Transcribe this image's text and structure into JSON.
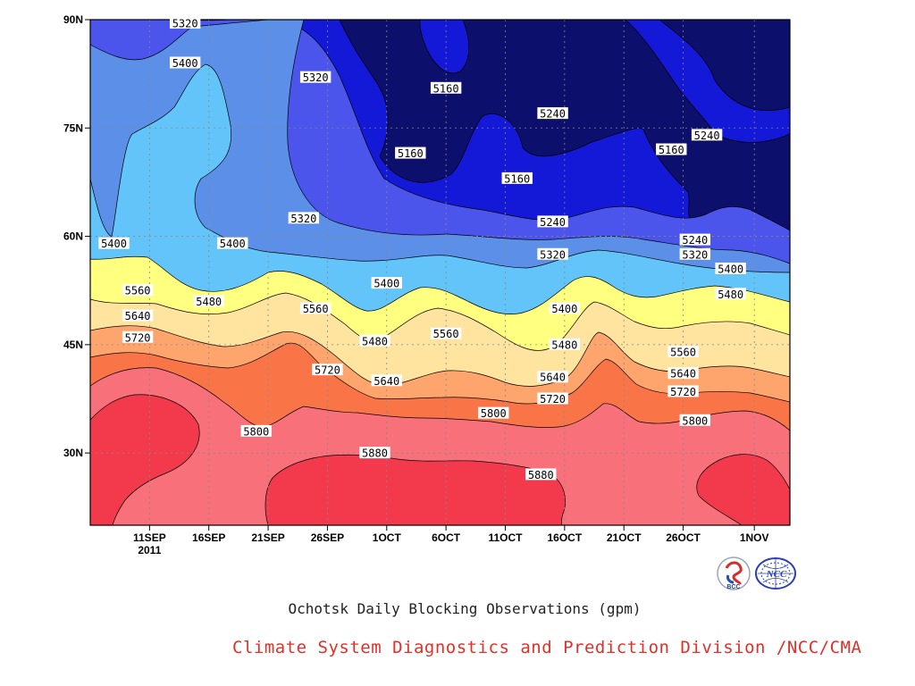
{
  "chart_data": {
    "type": "contour",
    "title": "Ochotsk Daily Blocking Observations (gpm)",
    "xlabel": "",
    "ylabel": "",
    "x_ticks": [
      "11SEP",
      "16SEP",
      "21SEP",
      "26SEP",
      "1OCT",
      "6OCT",
      "11OCT",
      "16OCT",
      "21OCT",
      "26OCT",
      "1NOV"
    ],
    "x_sublabel": "2011",
    "y_ticks": [
      "90N",
      "75N",
      "60N",
      "45N",
      "30N"
    ],
    "ylim": [
      20,
      90
    ],
    "xlim": [
      "2011-09-06",
      "2011-11-04"
    ],
    "levels": [
      5160,
      5240,
      5320,
      5400,
      5480,
      5560,
      5640,
      5720,
      5800,
      5880
    ],
    "colors": [
      "#0c0f6b",
      "#1319d6",
      "#4b55ec",
      "#5b8fe8",
      "#63c4fa",
      "#ffff80",
      "#ffe4a0",
      "#fda56c",
      "#f97548",
      "#f7707a",
      "#f23a4c"
    ],
    "contour_labels": [
      {
        "text": "5320",
        "date": "2011-09-14",
        "lat": 89.5
      },
      {
        "text": "5400",
        "date": "2011-09-14",
        "lat": 84
      },
      {
        "text": "5320",
        "date": "2011-09-25",
        "lat": 82
      },
      {
        "text": "5160",
        "date": "2011-10-06",
        "lat": 80.5
      },
      {
        "text": "5240",
        "date": "2011-10-15",
        "lat": 77
      },
      {
        "text": "5240",
        "date": "2011-10-28",
        "lat": 74
      },
      {
        "text": "5160",
        "date": "2011-10-03",
        "lat": 71.5
      },
      {
        "text": "5160",
        "date": "2011-10-12",
        "lat": 68
      },
      {
        "text": "5160",
        "date": "2011-10-25",
        "lat": 72
      },
      {
        "text": "5320",
        "date": "2011-09-24",
        "lat": 62.5
      },
      {
        "text": "5240",
        "date": "2011-10-15",
        "lat": 62
      },
      {
        "text": "5400",
        "date": "2011-09-08",
        "lat": 59
      },
      {
        "text": "5400",
        "date": "2011-09-18",
        "lat": 59
      },
      {
        "text": "5240",
        "date": "2011-10-27",
        "lat": 59.5
      },
      {
        "text": "5320",
        "date": "2011-10-15",
        "lat": 57.5
      },
      {
        "text": "5320",
        "date": "2011-10-27",
        "lat": 57.5
      },
      {
        "text": "5400",
        "date": "2011-10-30",
        "lat": 55.5
      },
      {
        "text": "5400",
        "date": "2011-10-01",
        "lat": 53.5
      },
      {
        "text": "5560",
        "date": "2011-09-10",
        "lat": 52.5
      },
      {
        "text": "5480",
        "date": "2011-10-30",
        "lat": 52
      },
      {
        "text": "5480",
        "date": "2011-09-16",
        "lat": 51
      },
      {
        "text": "5560",
        "date": "2011-09-25",
        "lat": 50
      },
      {
        "text": "5400",
        "date": "2011-10-16",
        "lat": 50
      },
      {
        "text": "5640",
        "date": "2011-09-10",
        "lat": 49
      },
      {
        "text": "5560",
        "date": "2011-10-06",
        "lat": 46.5
      },
      {
        "text": "5720",
        "date": "2011-09-10",
        "lat": 46
      },
      {
        "text": "5480",
        "date": "2011-09-30",
        "lat": 45.5
      },
      {
        "text": "5480",
        "date": "2011-10-16",
        "lat": 45
      },
      {
        "text": "5560",
        "date": "2011-10-26",
        "lat": 44
      },
      {
        "text": "5720",
        "date": "2011-09-26",
        "lat": 41.5
      },
      {
        "text": "5640",
        "date": "2011-10-26",
        "lat": 41
      },
      {
        "text": "5640",
        "date": "2011-10-01",
        "lat": 40
      },
      {
        "text": "5640",
        "date": "2011-10-15",
        "lat": 40.5
      },
      {
        "text": "5720",
        "date": "2011-10-15",
        "lat": 37.5
      },
      {
        "text": "5720",
        "date": "2011-10-26",
        "lat": 38.5
      },
      {
        "text": "5800",
        "date": "2011-10-10",
        "lat": 35.5
      },
      {
        "text": "5800",
        "date": "2011-10-27",
        "lat": 34.5
      },
      {
        "text": "5800",
        "date": "2011-09-20",
        "lat": 33
      },
      {
        "text": "5880",
        "date": "2011-09-30",
        "lat": 30
      },
      {
        "text": "5880",
        "date": "2011-10-14",
        "lat": 27
      }
    ]
  },
  "footer": {
    "title": "Ochotsk Daily Blocking Observations (gpm)",
    "credit": "Climate System Diagnostics and Prediction Division /NCC/CMA"
  },
  "logos": {
    "bcc_label": "BCC",
    "ncc_label": "NCC"
  }
}
